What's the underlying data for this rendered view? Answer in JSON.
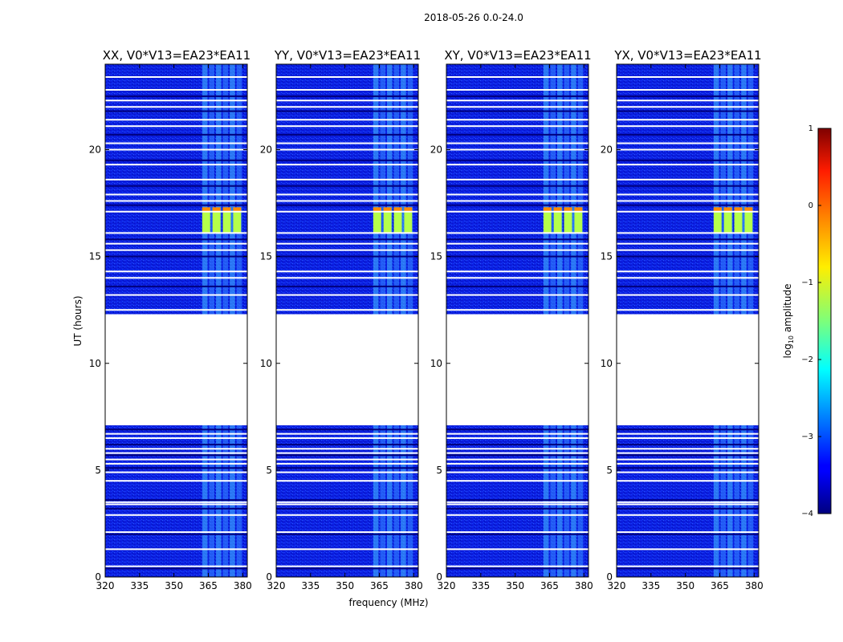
{
  "chart_data": {
    "type": "heatmap",
    "suptitle": "2018-05-26 0.0-24.0",
    "xlabel": "frequency (MHz)",
    "ylabel": "UT (hours)",
    "xlim": [
      320,
      382
    ],
    "ylim": [
      0,
      24
    ],
    "xticks": [
      320,
      335,
      350,
      365,
      380
    ],
    "yticks": [
      0,
      5,
      10,
      15,
      20
    ],
    "panels": [
      {
        "title": "XX, V0*V13=EA23*EA11",
        "polarization": "XX"
      },
      {
        "title": "YY, V0*V13=EA23*EA11",
        "polarization": "YY"
      },
      {
        "title": "XY, V0*V13=EA23*EA11",
        "polarization": "XY"
      },
      {
        "title": "YX, V0*V13=EA23*EA11",
        "polarization": "YX"
      }
    ],
    "no_data_interval_hours": [
      7.1,
      12.3
    ],
    "flagged_rows_hours": [
      0.4,
      0.5,
      1.3,
      2.0,
      2.1,
      2.9,
      3.2,
      3.4,
      3.5,
      3.6,
      4.5,
      4.9,
      5.1,
      5.3,
      5.5,
      5.7,
      5.8,
      6.0,
      6.2,
      6.5,
      6.7,
      6.9,
      12.5,
      13.2,
      13.6,
      14.0,
      14.3,
      15.0,
      15.3,
      15.6,
      15.8,
      16.1,
      17.1,
      17.4,
      17.6,
      17.9,
      18.3,
      18.6,
      19.3,
      19.5,
      20.0,
      20.3,
      20.7,
      21.1,
      21.4,
      21.8,
      22.0,
      22.3,
      22.5,
      22.8,
      23.4
    ],
    "rfi_band_mhz": [
      362,
      380
    ],
    "strong_rfi_interval_hours": [
      16.1,
      17.3
    ],
    "colorbar": {
      "label": "log10 amplitude",
      "label_base": "log",
      "label_subscript": "10",
      "label_rest": " amplitude",
      "min": -4,
      "max": 1,
      "ticks": [
        "1",
        "0",
        "−1",
        "−2",
        "−3",
        "−4"
      ],
      "ticks_values": [
        1,
        0,
        -1,
        -2,
        -3,
        -4
      ]
    }
  }
}
